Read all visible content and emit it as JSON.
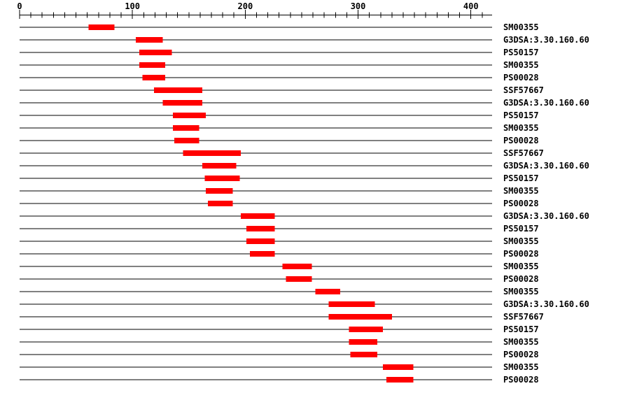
{
  "chart_data": {
    "type": "bar",
    "orientation": "horizontal-range-bars",
    "title": "",
    "xlabel": "",
    "ylabel": "",
    "axis": {
      "min": 0,
      "max": 419,
      "position": "top",
      "minor_tick_step": 10,
      "major_ticks": [
        0,
        100,
        200,
        300,
        400
      ],
      "major_tick_labels": [
        "0",
        "100",
        "200",
        "300",
        "400"
      ]
    },
    "legend": "none",
    "grid": "off",
    "rows": [
      {
        "label": "SM00355",
        "start": 61,
        "end": 84
      },
      {
        "label": "G3DSA:3.30.160.60",
        "start": 103,
        "end": 127
      },
      {
        "label": "PS50157",
        "start": 106,
        "end": 135
      },
      {
        "label": "SM00355",
        "start": 106,
        "end": 129
      },
      {
        "label": "PS00028",
        "start": 109,
        "end": 129
      },
      {
        "label": "SSF57667",
        "start": 119,
        "end": 162
      },
      {
        "label": "G3DSA:3.30.160.60",
        "start": 127,
        "end": 162
      },
      {
        "label": "PS50157",
        "start": 136,
        "end": 165
      },
      {
        "label": "SM00355",
        "start": 136,
        "end": 159
      },
      {
        "label": "PS00028",
        "start": 137,
        "end": 159
      },
      {
        "label": "SSF57667",
        "start": 145,
        "end": 196
      },
      {
        "label": "G3DSA:3.30.160.60",
        "start": 162,
        "end": 192
      },
      {
        "label": "PS50157",
        "start": 164,
        "end": 195
      },
      {
        "label": "SM00355",
        "start": 165,
        "end": 189
      },
      {
        "label": "PS00028",
        "start": 167,
        "end": 189
      },
      {
        "label": "G3DSA:3.30.160.60",
        "start": 196,
        "end": 226
      },
      {
        "label": "PS50157",
        "start": 201,
        "end": 226
      },
      {
        "label": "SM00355",
        "start": 201,
        "end": 226
      },
      {
        "label": "PS00028",
        "start": 204,
        "end": 226
      },
      {
        "label": "SM00355",
        "start": 233,
        "end": 259
      },
      {
        "label": "PS00028",
        "start": 236,
        "end": 259
      },
      {
        "label": "SM00355",
        "start": 262,
        "end": 284
      },
      {
        "label": "G3DSA:3.30.160.60",
        "start": 274,
        "end": 315
      },
      {
        "label": "SSF57667",
        "start": 274,
        "end": 330
      },
      {
        "label": "PS50157",
        "start": 292,
        "end": 322
      },
      {
        "label": "SM00355",
        "start": 292,
        "end": 317
      },
      {
        "label": "PS00028",
        "start": 293,
        "end": 317
      },
      {
        "label": "SM00355",
        "start": 322,
        "end": 349
      },
      {
        "label": "PS00028",
        "start": 325,
        "end": 349
      }
    ],
    "colors": {
      "bar": "#ff0000",
      "line": "#000000",
      "text": "#000000",
      "background": "#ffffff"
    }
  }
}
